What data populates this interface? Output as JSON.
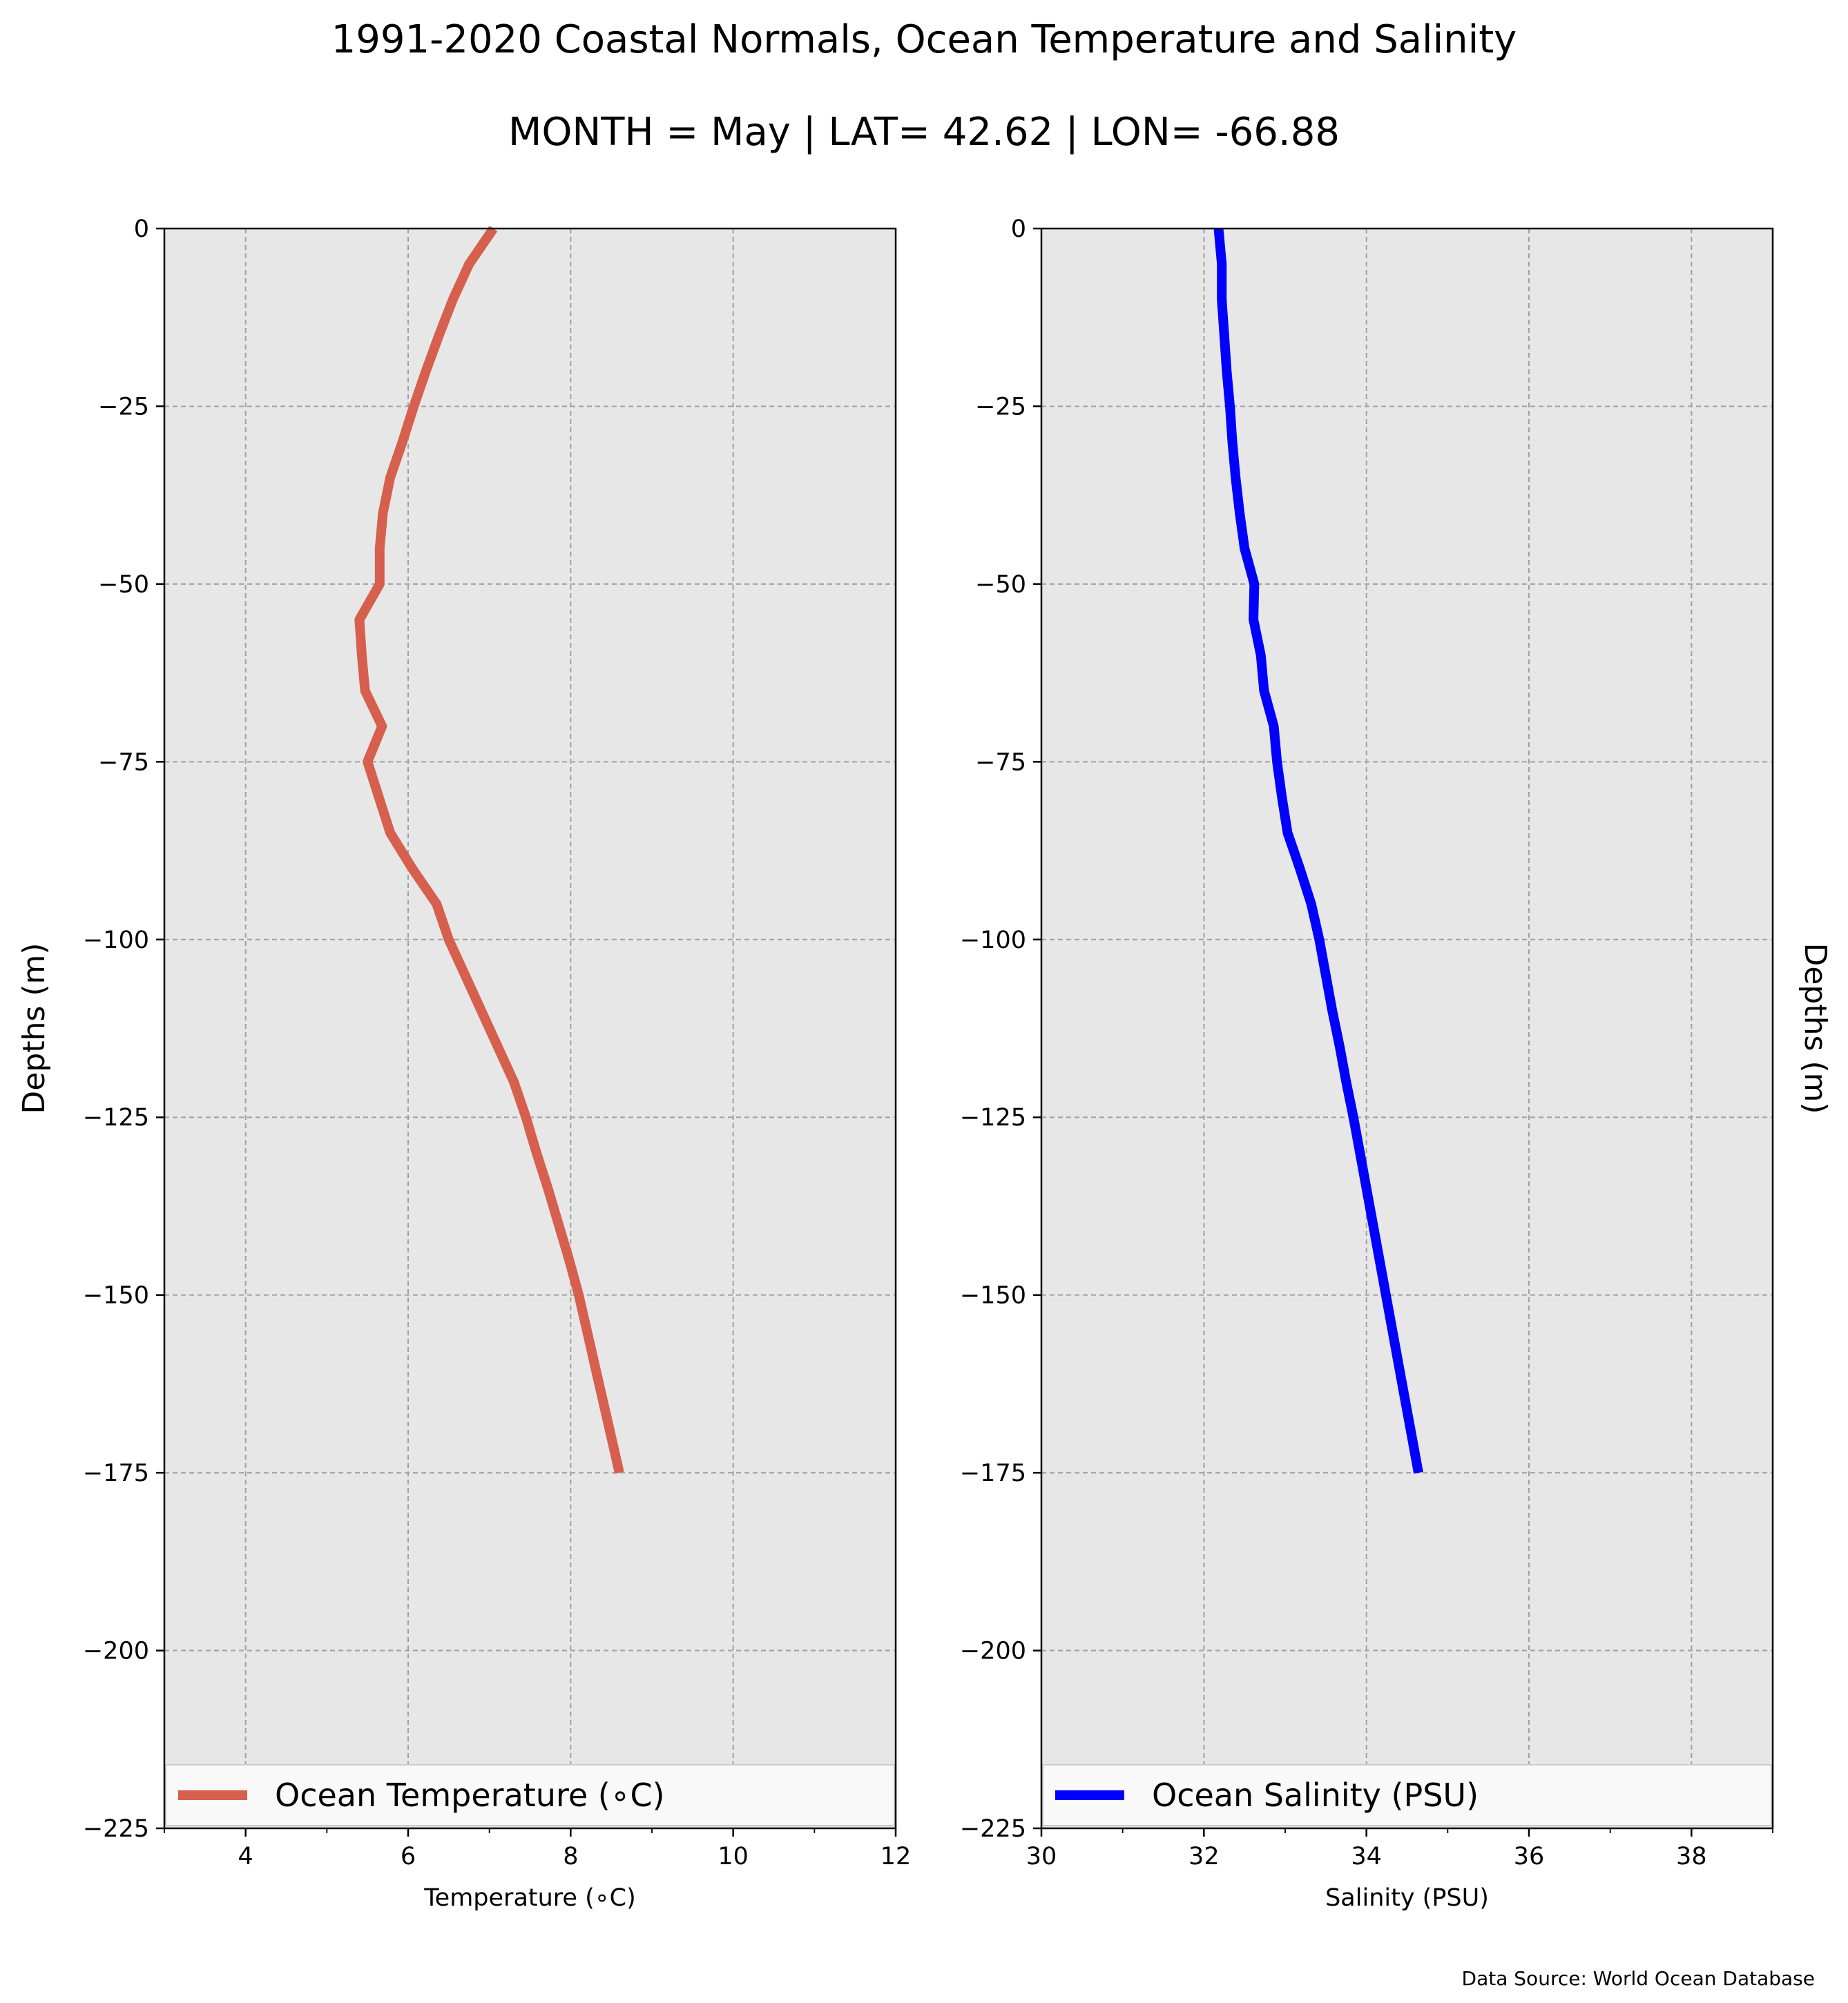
{
  "figure": {
    "title": "1991-2020 Coastal Normals, Ocean Temperature and Salinity",
    "subtitle": "MONTH = May | LAT= 42.62 | LON= -66.88",
    "source": "Data Source: World Ocean Database"
  },
  "chart_data": [
    {
      "type": "line",
      "xlabel": "Temperature (∘C)",
      "ylabel": "Depths (m)",
      "ylabel_side": "left",
      "xlim": [
        3,
        12
      ],
      "ylim": [
        -225,
        0
      ],
      "xticks": [
        4,
        6,
        8,
        10,
        12
      ],
      "xtick_labels": [
        "4",
        "6",
        "8",
        "10",
        "12"
      ],
      "yticks": [
        0,
        -25,
        -50,
        -75,
        -100,
        -125,
        -150,
        -175,
        -200,
        -225
      ],
      "ytick_labels": [
        "0",
        "−25",
        "−50",
        "−75",
        "−100",
        "−125",
        "−150",
        "−175",
        "−200",
        "−225"
      ],
      "grid": true,
      "legend": "bottom",
      "series": [
        {
          "name": "Ocean Temperature (∘C)",
          "color": "#d65f4d",
          "points": [
            {
              "x": 7.05,
              "y": 0
            },
            {
              "x": 6.75,
              "y": -5
            },
            {
              "x": 6.55,
              "y": -10
            },
            {
              "x": 6.38,
              "y": -15
            },
            {
              "x": 6.22,
              "y": -20
            },
            {
              "x": 6.07,
              "y": -25
            },
            {
              "x": 5.93,
              "y": -30
            },
            {
              "x": 5.78,
              "y": -35
            },
            {
              "x": 5.69,
              "y": -40
            },
            {
              "x": 5.65,
              "y": -45
            },
            {
              "x": 5.65,
              "y": -50
            },
            {
              "x": 5.4,
              "y": -55
            },
            {
              "x": 5.43,
              "y": -60
            },
            {
              "x": 5.47,
              "y": -65
            },
            {
              "x": 5.68,
              "y": -70
            },
            {
              "x": 5.5,
              "y": -75
            },
            {
              "x": 5.64,
              "y": -80
            },
            {
              "x": 5.78,
              "y": -85
            },
            {
              "x": 6.05,
              "y": -90
            },
            {
              "x": 6.35,
              "y": -95
            },
            {
              "x": 6.5,
              "y": -100
            },
            {
              "x": 6.7,
              "y": -105
            },
            {
              "x": 6.9,
              "y": -110
            },
            {
              "x": 7.1,
              "y": -115
            },
            {
              "x": 7.3,
              "y": -120
            },
            {
              "x": 7.45,
              "y": -125
            },
            {
              "x": 7.58,
              "y": -130
            },
            {
              "x": 7.72,
              "y": -135
            },
            {
              "x": 7.85,
              "y": -140
            },
            {
              "x": 7.98,
              "y": -145
            },
            {
              "x": 8.1,
              "y": -150
            },
            {
              "x": 8.2,
              "y": -155
            },
            {
              "x": 8.3,
              "y": -160
            },
            {
              "x": 8.4,
              "y": -165
            },
            {
              "x": 8.5,
              "y": -170
            },
            {
              "x": 8.6,
              "y": -175
            }
          ]
        }
      ]
    },
    {
      "type": "line",
      "xlabel": "Salinity (PSU)",
      "ylabel": "Depths (m)",
      "ylabel_side": "right",
      "xlim": [
        30,
        39
      ],
      "ylim": [
        -225,
        0
      ],
      "xticks": [
        30,
        32,
        34,
        36,
        38
      ],
      "xtick_labels": [
        "30",
        "32",
        "34",
        "36",
        "38"
      ],
      "yticks": [
        0,
        -25,
        -50,
        -75,
        -100,
        -125,
        -150,
        -175,
        -200,
        -225
      ],
      "ytick_labels": [
        "0",
        "−25",
        "−50",
        "−75",
        "−100",
        "−125",
        "−150",
        "−175",
        "−200",
        "−225"
      ],
      "grid": true,
      "legend": "bottom",
      "series": [
        {
          "name": "Ocean Salinity (PSU)",
          "color": "#0000ff",
          "points": [
            {
              "x": 32.18,
              "y": 0
            },
            {
              "x": 32.22,
              "y": -5
            },
            {
              "x": 32.22,
              "y": -10
            },
            {
              "x": 32.25,
              "y": -15
            },
            {
              "x": 32.28,
              "y": -20
            },
            {
              "x": 32.32,
              "y": -25
            },
            {
              "x": 32.35,
              "y": -30
            },
            {
              "x": 32.39,
              "y": -35
            },
            {
              "x": 32.44,
              "y": -40
            },
            {
              "x": 32.5,
              "y": -45
            },
            {
              "x": 32.62,
              "y": -50
            },
            {
              "x": 32.61,
              "y": -55
            },
            {
              "x": 32.7,
              "y": -60
            },
            {
              "x": 32.74,
              "y": -65
            },
            {
              "x": 32.86,
              "y": -70
            },
            {
              "x": 32.9,
              "y": -75
            },
            {
              "x": 32.96,
              "y": -80
            },
            {
              "x": 33.03,
              "y": -85
            },
            {
              "x": 33.18,
              "y": -90
            },
            {
              "x": 33.32,
              "y": -95
            },
            {
              "x": 33.42,
              "y": -100
            },
            {
              "x": 33.5,
              "y": -105
            },
            {
              "x": 33.58,
              "y": -110
            },
            {
              "x": 33.67,
              "y": -115
            },
            {
              "x": 33.75,
              "y": -120
            },
            {
              "x": 33.84,
              "y": -125
            },
            {
              "x": 33.92,
              "y": -130
            },
            {
              "x": 34.0,
              "y": -135
            },
            {
              "x": 34.08,
              "y": -140
            },
            {
              "x": 34.16,
              "y": -145
            },
            {
              "x": 34.24,
              "y": -150
            },
            {
              "x": 34.32,
              "y": -155
            },
            {
              "x": 34.4,
              "y": -160
            },
            {
              "x": 34.48,
              "y": -165
            },
            {
              "x": 34.56,
              "y": -170
            },
            {
              "x": 34.64,
              "y": -175
            }
          ]
        }
      ]
    }
  ]
}
